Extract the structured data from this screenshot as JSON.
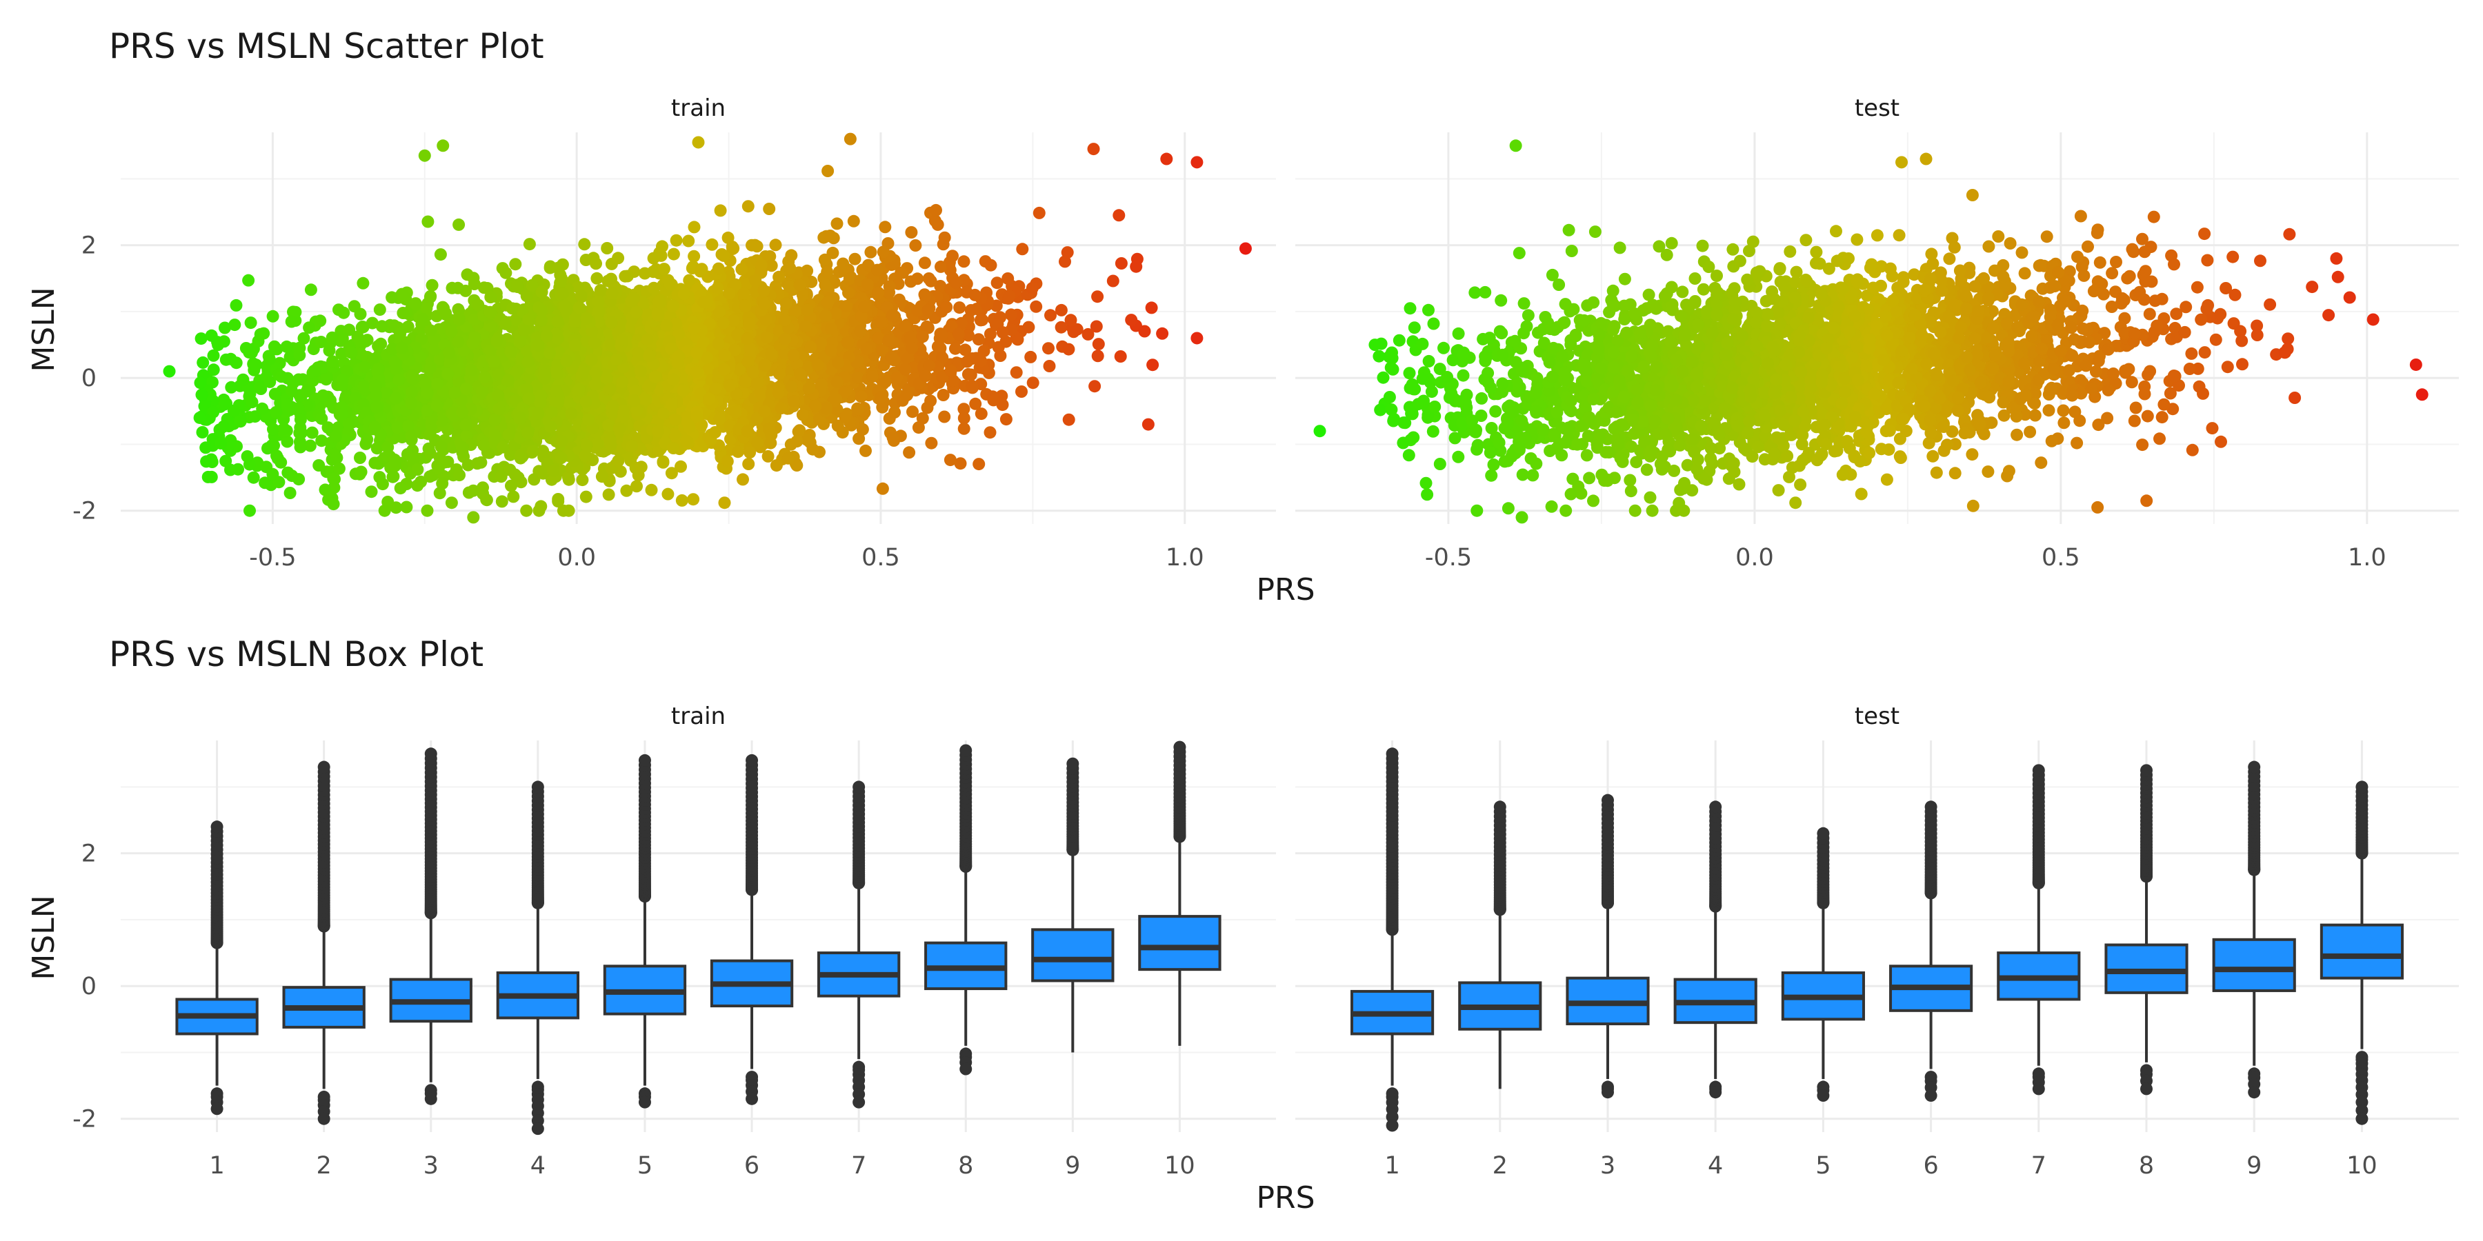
{
  "scatter": {
    "title": "PRS vs MSLN Scatter Plot",
    "xlabel": "PRS",
    "ylabel": "MSLN",
    "x_ticks": [
      "-0.5",
      "0.0",
      "0.5",
      "1.0"
    ],
    "y_ticks": [
      "-2",
      "0",
      "2"
    ],
    "color_low": "#22ee00",
    "color_mid": "#c8b400",
    "color_high": "#e81c10"
  },
  "box": {
    "title": "PRS vs MSLN Box Plot",
    "xlabel": "PRS",
    "ylabel": "MSLN",
    "x_ticks": [
      "1",
      "2",
      "3",
      "4",
      "5",
      "6",
      "7",
      "8",
      "9",
      "10"
    ],
    "y_ticks": [
      "-2",
      "0",
      "2"
    ],
    "box_fill": "#1e90ff",
    "line_color": "#333333"
  },
  "chart_data": [
    {
      "type": "scatter",
      "title": "PRS vs MSLN Scatter Plot",
      "xlabel": "PRS",
      "ylabel": "MSLN",
      "xlim": [
        -0.75,
        1.15
      ],
      "ylim": [
        -2.2,
        3.7
      ],
      "x_ticks": [
        -0.5,
        0.0,
        0.5,
        1.0
      ],
      "y_ticks": [
        -2,
        0,
        2
      ],
      "grid": true,
      "color_by": "PRS",
      "panels": [
        {
          "name": "train",
          "summary": "dense cloud, PRS approx -0.7 to 1.1, MSLN approx -2.1 to 3.6, positive trend",
          "outliers": [
            {
              "x": -0.67,
              "y": 0.1
            },
            {
              "x": -0.62,
              "y": -0.6
            },
            {
              "x": -0.54,
              "y": 1.47
            },
            {
              "x": -0.58,
              "y": 0.55
            },
            {
              "x": -0.5,
              "y": -1.45
            },
            {
              "x": -0.4,
              "y": -1.9
            },
            {
              "x": -0.25,
              "y": 3.35
            },
            {
              "x": -0.22,
              "y": 3.5
            },
            {
              "x": -0.17,
              "y": -2.1
            },
            {
              "x": 0.15,
              "y": -1.75
            },
            {
              "x": 0.2,
              "y": 3.55
            },
            {
              "x": 0.45,
              "y": 3.6
            },
            {
              "x": 0.85,
              "y": 3.45
            },
            {
              "x": 0.97,
              "y": 3.3
            },
            {
              "x": 1.02,
              "y": 3.25
            },
            {
              "x": 1.1,
              "y": 1.95
            },
            {
              "x": 1.02,
              "y": 0.6
            },
            {
              "x": 0.94,
              "y": -0.7
            },
            {
              "x": 0.52,
              "y": -0.9
            }
          ]
        },
        {
          "name": "test",
          "summary": "dense cloud, PRS approx -0.7 to 1.1, MSLN approx -2.1 to 3.5, positive trend",
          "outliers": [
            {
              "x": -0.71,
              "y": -0.8
            },
            {
              "x": -0.62,
              "y": 0.5
            },
            {
              "x": -0.39,
              "y": 3.5
            },
            {
              "x": -0.38,
              "y": -2.1
            },
            {
              "x": -0.3,
              "y": -1.75
            },
            {
              "x": 0.24,
              "y": 3.25
            },
            {
              "x": 0.28,
              "y": 3.3
            },
            {
              "x": 0.56,
              "y": -1.95
            },
            {
              "x": 0.64,
              "y": -1.85
            },
            {
              "x": 1.01,
              "y": 0.88
            },
            {
              "x": 1.08,
              "y": 0.2
            },
            {
              "x": 1.09,
              "y": -0.25
            },
            {
              "x": 0.95,
              "y": 1.8
            }
          ]
        }
      ]
    },
    {
      "type": "box",
      "title": "PRS vs MSLN Box Plot",
      "xlabel": "PRS",
      "ylabel": "MSLN",
      "categories": [
        "1",
        "2",
        "3",
        "4",
        "5",
        "6",
        "7",
        "8",
        "9",
        "10"
      ],
      "ylim": [
        -2.2,
        3.7
      ],
      "y_ticks": [
        -2,
        0,
        2
      ],
      "grid": true,
      "box_fill": "#1e90ff",
      "panels": [
        {
          "name": "train",
          "boxes": [
            {
              "q1": -0.72,
              "median": -0.45,
              "q3": -0.2,
              "whisker_low": -1.5,
              "whisker_high": 0.6,
              "outlier_low": -1.85,
              "outlier_high": 2.4
            },
            {
              "q1": -0.62,
              "median": -0.33,
              "q3": -0.02,
              "whisker_low": -1.55,
              "whisker_high": 0.85,
              "outlier_low": -2.0,
              "outlier_high": 3.3
            },
            {
              "q1": -0.53,
              "median": -0.24,
              "q3": 0.1,
              "whisker_low": -1.45,
              "whisker_high": 1.05,
              "outlier_low": -1.7,
              "outlier_high": 3.5
            },
            {
              "q1": -0.48,
              "median": -0.15,
              "q3": 0.2,
              "whisker_low": -1.4,
              "whisker_high": 1.2,
              "outlier_low": -2.15,
              "outlier_high": 3.0
            },
            {
              "q1": -0.42,
              "median": -0.09,
              "q3": 0.3,
              "whisker_low": -1.5,
              "whisker_high": 1.3,
              "outlier_low": -1.75,
              "outlier_high": 3.4
            },
            {
              "q1": -0.3,
              "median": 0.03,
              "q3": 0.38,
              "whisker_low": -1.25,
              "whisker_high": 1.4,
              "outlier_low": -1.7,
              "outlier_high": 3.4
            },
            {
              "q1": -0.15,
              "median": 0.17,
              "q3": 0.5,
              "whisker_low": -1.1,
              "whisker_high": 1.5,
              "outlier_low": -1.75,
              "outlier_high": 3.0
            },
            {
              "q1": -0.04,
              "median": 0.27,
              "q3": 0.65,
              "whisker_low": -0.9,
              "whisker_high": 1.75,
              "outlier_low": -1.25,
              "outlier_high": 3.55
            },
            {
              "q1": 0.08,
              "median": 0.4,
              "q3": 0.85,
              "whisker_low": -1.0,
              "whisker_high": 2.0,
              "outlier_low": null,
              "outlier_high": 3.35
            },
            {
              "q1": 0.25,
              "median": 0.58,
              "q3": 1.05,
              "whisker_low": -0.9,
              "whisker_high": 2.2,
              "outlier_low": null,
              "outlier_high": 3.6
            }
          ]
        },
        {
          "name": "test",
          "boxes": [
            {
              "q1": -0.72,
              "median": -0.42,
              "q3": -0.08,
              "whisker_low": -1.5,
              "whisker_high": 0.8,
              "outlier_low": -2.1,
              "outlier_high": 3.5
            },
            {
              "q1": -0.65,
              "median": -0.32,
              "q3": 0.05,
              "whisker_low": -1.55,
              "whisker_high": 1.1,
              "outlier_low": null,
              "outlier_high": 2.7
            },
            {
              "q1": -0.57,
              "median": -0.26,
              "q3": 0.12,
              "whisker_low": -1.4,
              "whisker_high": 1.2,
              "outlier_low": -1.6,
              "outlier_high": 2.8
            },
            {
              "q1": -0.55,
              "median": -0.25,
              "q3": 0.1,
              "whisker_low": -1.4,
              "whisker_high": 1.15,
              "outlier_low": -1.6,
              "outlier_high": 2.7
            },
            {
              "q1": -0.5,
              "median": -0.17,
              "q3": 0.2,
              "whisker_low": -1.4,
              "whisker_high": 1.2,
              "outlier_low": -1.65,
              "outlier_high": 2.3
            },
            {
              "q1": -0.37,
              "median": -0.02,
              "q3": 0.3,
              "whisker_low": -1.25,
              "whisker_high": 1.35,
              "outlier_low": -1.65,
              "outlier_high": 2.7
            },
            {
              "q1": -0.2,
              "median": 0.12,
              "q3": 0.5,
              "whisker_low": -1.2,
              "whisker_high": 1.5,
              "outlier_low": -1.55,
              "outlier_high": 3.25
            },
            {
              "q1": -0.1,
              "median": 0.22,
              "q3": 0.62,
              "whisker_low": -1.15,
              "whisker_high": 1.6,
              "outlier_low": -1.55,
              "outlier_high": 3.25
            },
            {
              "q1": -0.07,
              "median": 0.25,
              "q3": 0.7,
              "whisker_low": -1.2,
              "whisker_high": 1.7,
              "outlier_low": -1.6,
              "outlier_high": 3.3
            },
            {
              "q1": 0.12,
              "median": 0.45,
              "q3": 0.92,
              "whisker_low": -0.95,
              "whisker_high": 1.95,
              "outlier_low": -2.0,
              "outlier_high": 3.0
            }
          ]
        }
      ]
    }
  ]
}
